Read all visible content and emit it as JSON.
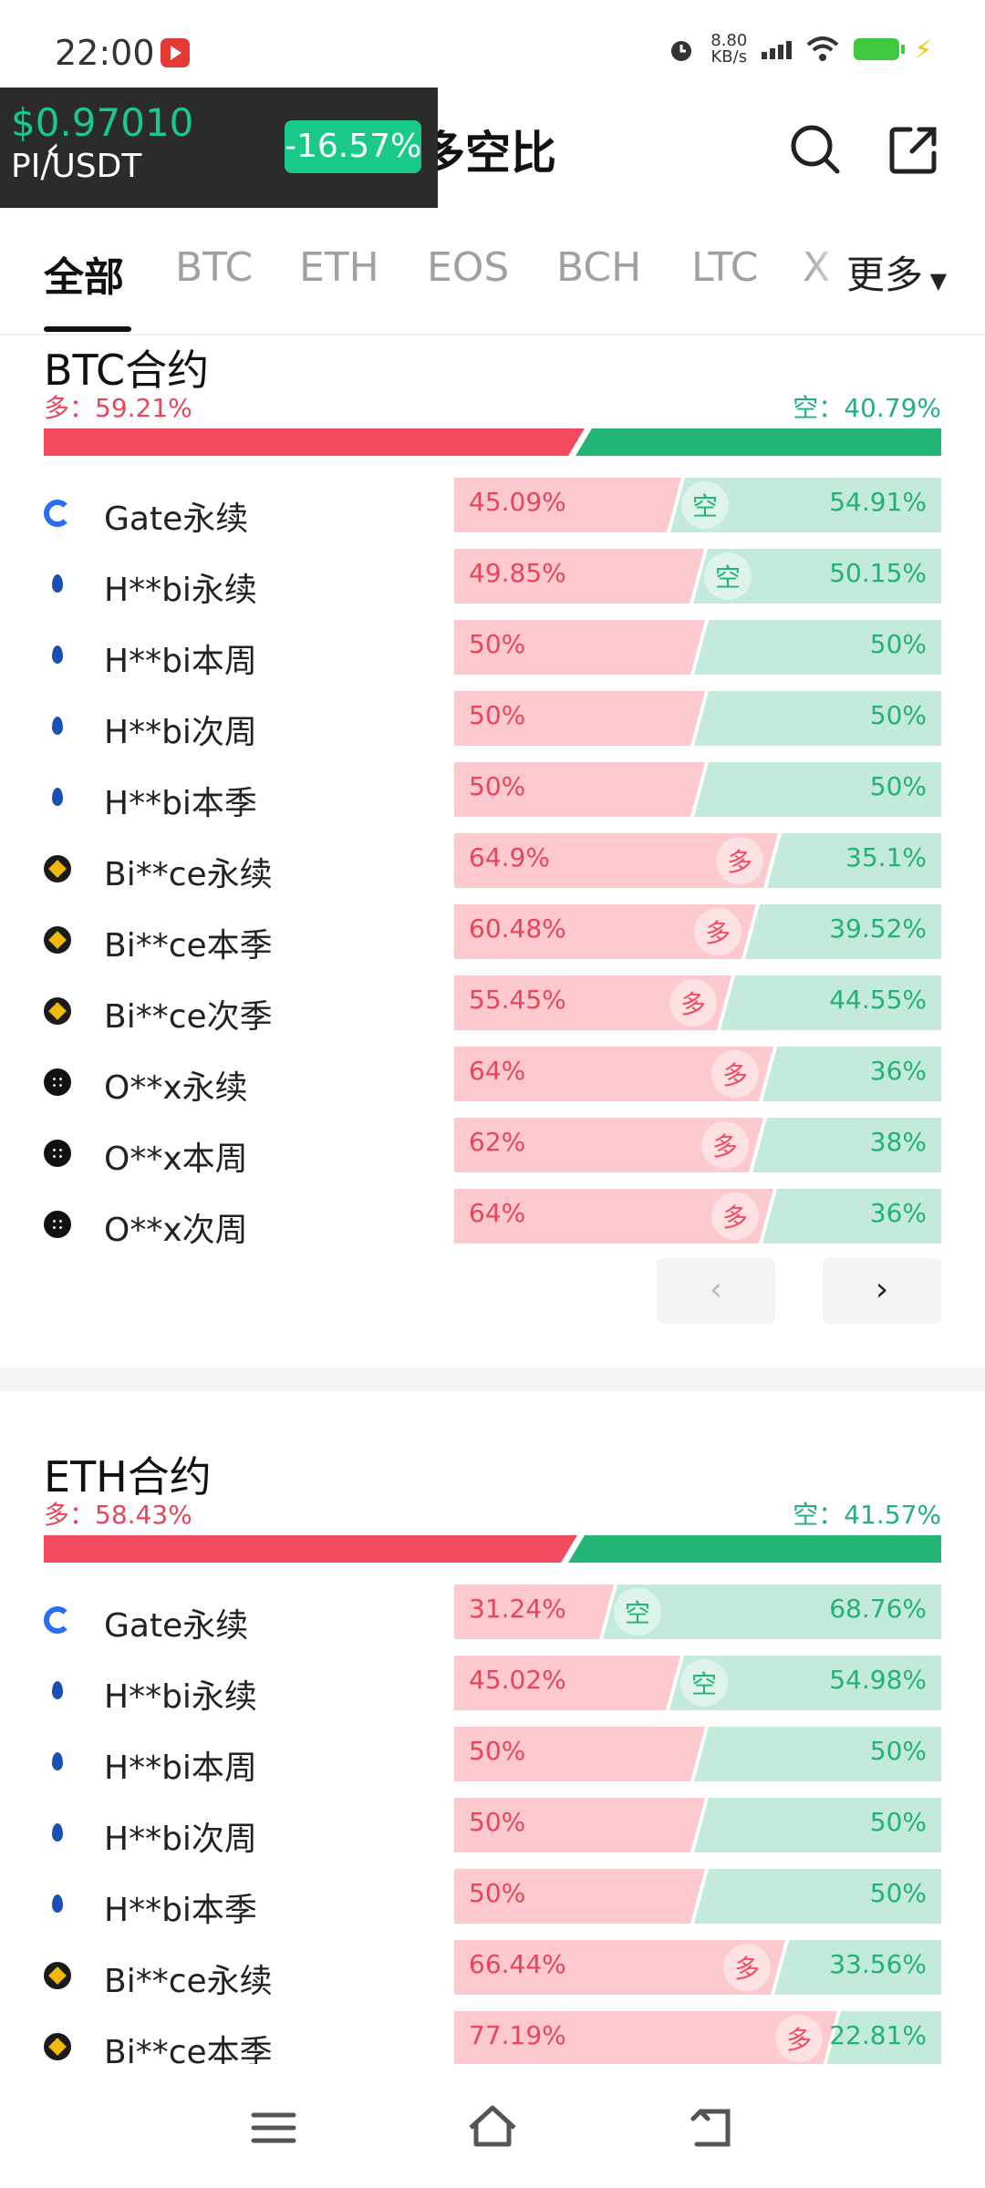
{
  "status": {
    "time": "22:00",
    "speed_value": "8.80",
    "speed_unit": "KB/s"
  },
  "header": {
    "title": "多空比"
  },
  "ticker": {
    "price": "$0.97010",
    "pair": "PI/USDT",
    "change": "-16.57%"
  },
  "tabs": [
    "全部",
    "BTC",
    "ETH",
    "EOS",
    "BCH",
    "LTC",
    "X"
  ],
  "tabs_more": "更多",
  "btc": {
    "title": "BTC合约",
    "long": "多：59.21%",
    "short": "空：40.79%",
    "long_ratio": 0.5921,
    "rows": [
      {
        "logo": "gate",
        "name": "Gate永续",
        "long": "45.09%",
        "short": "54.91%",
        "tag": "空",
        "ratio": 0.4509
      },
      {
        "logo": "huobi",
        "name": "H**bi永续",
        "long": "49.85%",
        "short": "50.15%",
        "tag": "空",
        "ratio": 0.4985
      },
      {
        "logo": "huobi",
        "name": "H**bi本周",
        "long": "50%",
        "short": "50%",
        "tag": "",
        "ratio": 0.5
      },
      {
        "logo": "huobi",
        "name": "H**bi次周",
        "long": "50%",
        "short": "50%",
        "tag": "",
        "ratio": 0.5
      },
      {
        "logo": "huobi",
        "name": "H**bi本季",
        "long": "50%",
        "short": "50%",
        "tag": "",
        "ratio": 0.5
      },
      {
        "logo": "binance",
        "name": "Bi**ce永续",
        "long": "64.9%",
        "short": "35.1%",
        "tag": "多",
        "ratio": 0.649
      },
      {
        "logo": "binance",
        "name": "Bi**ce本季",
        "long": "60.48%",
        "short": "39.52%",
        "tag": "多",
        "ratio": 0.6048
      },
      {
        "logo": "binance",
        "name": "Bi**ce次季",
        "long": "55.45%",
        "short": "44.55%",
        "tag": "多",
        "ratio": 0.5545
      },
      {
        "logo": "okx",
        "name": "O**x永续",
        "long": "64%",
        "short": "36%",
        "tag": "多",
        "ratio": 0.64
      },
      {
        "logo": "okx",
        "name": "O**x本周",
        "long": "62%",
        "short": "38%",
        "tag": "多",
        "ratio": 0.62
      },
      {
        "logo": "okx",
        "name": "O**x次周",
        "long": "64%",
        "short": "36%",
        "tag": "多",
        "ratio": 0.64
      }
    ]
  },
  "eth": {
    "title": "ETH合约",
    "long": "多：58.43%",
    "short": "空：41.57%",
    "long_ratio": 0.5843,
    "rows": [
      {
        "logo": "gate",
        "name": "Gate永续",
        "long": "31.24%",
        "short": "68.76%",
        "tag": "空",
        "ratio": 0.3124
      },
      {
        "logo": "huobi",
        "name": "H**bi永续",
        "long": "45.02%",
        "short": "54.98%",
        "tag": "空",
        "ratio": 0.4502
      },
      {
        "logo": "huobi",
        "name": "H**bi本周",
        "long": "50%",
        "short": "50%",
        "tag": "",
        "ratio": 0.5
      },
      {
        "logo": "huobi",
        "name": "H**bi次周",
        "long": "50%",
        "short": "50%",
        "tag": "",
        "ratio": 0.5
      },
      {
        "logo": "huobi",
        "name": "H**bi本季",
        "long": "50%",
        "short": "50%",
        "tag": "",
        "ratio": 0.5
      },
      {
        "logo": "binance",
        "name": "Bi**ce永续",
        "long": "66.44%",
        "short": "33.56%",
        "tag": "多",
        "ratio": 0.6644
      },
      {
        "logo": "binance",
        "name": "Bi**ce本季",
        "long": "77.19%",
        "short": "22.81%",
        "tag": "多",
        "ratio": 0.7719
      }
    ]
  },
  "colors": {
    "long": "#f24a5e",
    "short": "#22b573",
    "long_light": "#fcc9cf",
    "short_light": "#c3eadb"
  }
}
